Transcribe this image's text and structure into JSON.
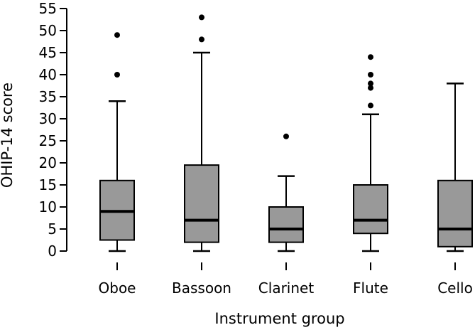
{
  "chart_data": {
    "type": "boxplot",
    "xlabel": "Instrument group",
    "ylabel": "OHIP-14 score",
    "ylim": [
      0,
      55
    ],
    "yticks": [
      0,
      5,
      10,
      15,
      20,
      25,
      30,
      35,
      40,
      45,
      50,
      55
    ],
    "grid": false,
    "box_color": "#999999",
    "categories": [
      "Oboe",
      "Bassoon",
      "Clarinet",
      "Flute",
      "Cello"
    ],
    "boxes": [
      {
        "name": "Oboe",
        "whisker_low": 0,
        "q1": 2.5,
        "median": 9,
        "q3": 16,
        "whisker_high": 34,
        "outliers": [
          40,
          49
        ]
      },
      {
        "name": "Bassoon",
        "whisker_low": 0,
        "q1": 2,
        "median": 7,
        "q3": 19.5,
        "whisker_high": 45,
        "outliers": [
          48,
          53
        ]
      },
      {
        "name": "Clarinet",
        "whisker_low": 0,
        "q1": 2,
        "median": 5,
        "q3": 10,
        "whisker_high": 17,
        "outliers": [
          26
        ]
      },
      {
        "name": "Flute",
        "whisker_low": 0,
        "q1": 4,
        "median": 7,
        "q3": 15,
        "whisker_high": 31,
        "outliers": [
          33,
          37,
          38,
          40,
          44
        ]
      },
      {
        "name": "Cello",
        "whisker_low": 0,
        "q1": 1,
        "median": 5,
        "q3": 16,
        "whisker_high": 38,
        "outliers": []
      }
    ]
  }
}
